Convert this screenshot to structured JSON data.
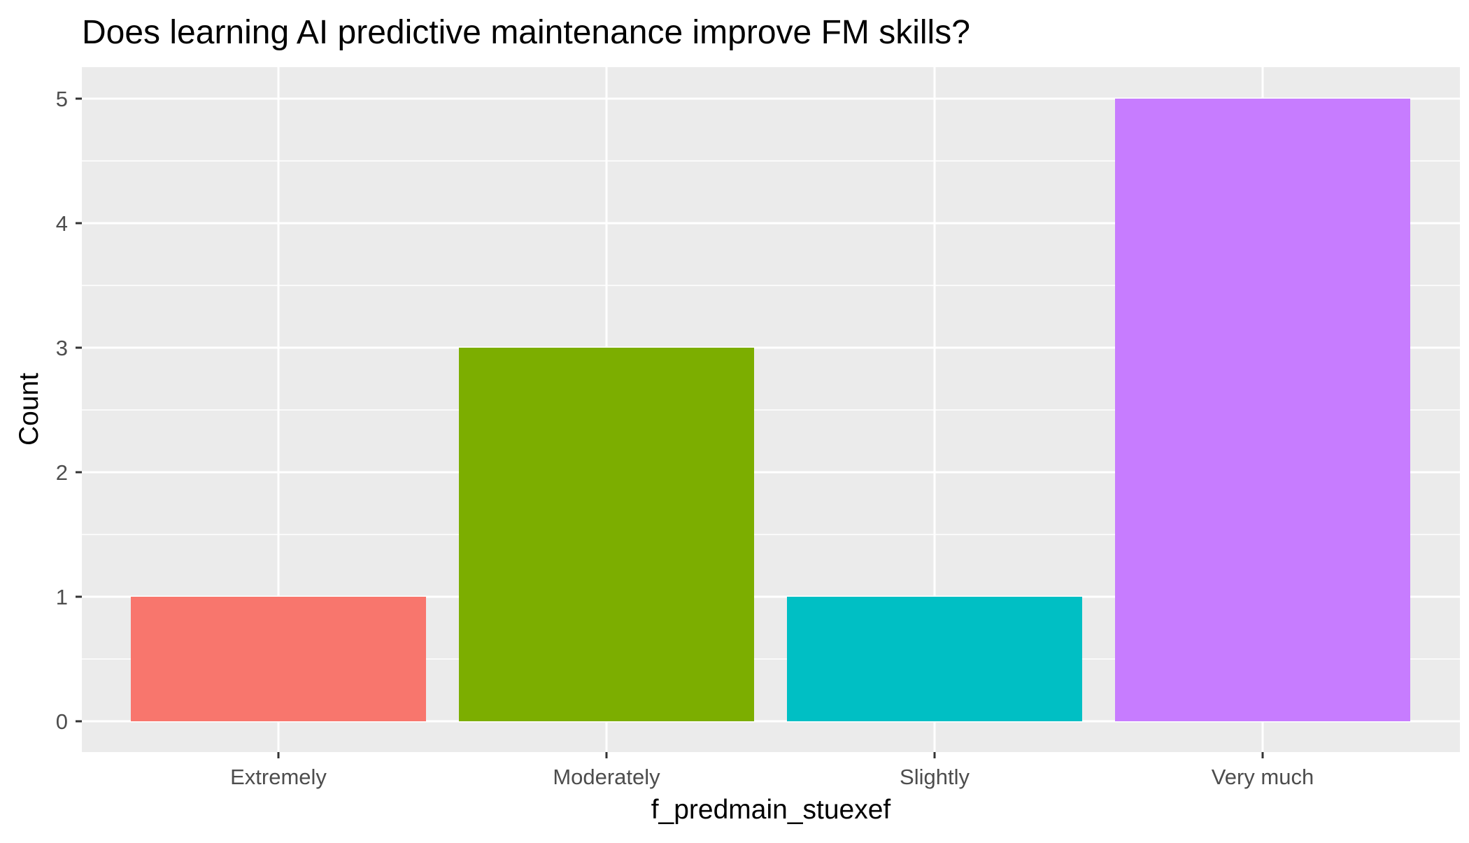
{
  "chart_data": {
    "type": "bar",
    "title": "Does learning AI predictive maintenance improve FM skills?",
    "xlabel": "f_predmain_stuexef",
    "ylabel": "Count",
    "categories": [
      "Extremely",
      "Moderately",
      "Slightly",
      "Very much"
    ],
    "values": [
      1,
      3,
      1,
      5
    ],
    "colors": [
      "#F8766D",
      "#7CAE00",
      "#00BFC4",
      "#C77CFF"
    ],
    "ylim": [
      0,
      5
    ],
    "yticks": [
      "0",
      "1",
      "2",
      "3",
      "4",
      "5"
    ],
    "grid": true,
    "legend": "none",
    "panel_background": "#EBEBEB",
    "grid_color": "#FFFFFF"
  }
}
